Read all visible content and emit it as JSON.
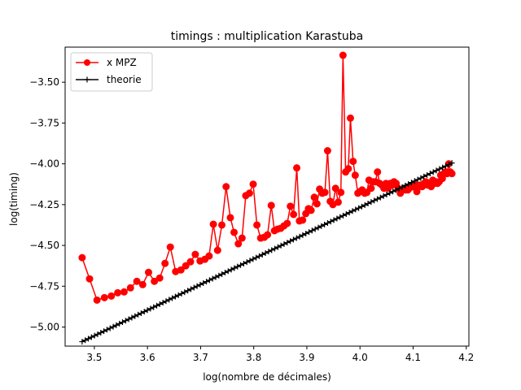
{
  "chart_data": {
    "type": "line",
    "title": "timings : multiplication Karastuba",
    "xlabel": "log(nombre de décimales)",
    "ylabel": "log(timing)",
    "xlim": [
      3.445,
      4.205
    ],
    "ylim": [
      -5.117,
      -3.285
    ],
    "xticks": [
      3.5,
      3.6,
      3.7,
      3.8,
      3.9,
      4.0,
      4.1,
      4.2
    ],
    "xtick_labels": [
      "3.5",
      "3.6",
      "3.7",
      "3.8",
      "3.9",
      "4.0",
      "4.1",
      "4.2"
    ],
    "yticks": [
      -5.0,
      -4.75,
      -4.5,
      -4.25,
      -4.0,
      -3.75,
      -3.5
    ],
    "ytick_labels": [
      "−5.00",
      "−4.75",
      "−4.50",
      "−4.25",
      "−4.00",
      "−3.75",
      "−3.50"
    ],
    "grid": false,
    "legend_position": "top-left",
    "series": [
      {
        "name": "x MPZ",
        "color": "#ff0000",
        "marker": "circle",
        "x": [
          3.477,
          3.491,
          3.505,
          3.519,
          3.532,
          3.544,
          3.556,
          3.568,
          3.58,
          3.591,
          3.602,
          3.613,
          3.623,
          3.633,
          3.643,
          3.653,
          3.663,
          3.672,
          3.681,
          3.69,
          3.699,
          3.708,
          3.716,
          3.724,
          3.732,
          3.74,
          3.748,
          3.756,
          3.763,
          3.771,
          3.778,
          3.785,
          3.792,
          3.799,
          3.806,
          3.813,
          3.82,
          3.826,
          3.833,
          3.839,
          3.845,
          3.851,
          3.857,
          3.863,
          3.869,
          3.875,
          3.881,
          3.886,
          3.892,
          3.898,
          3.903,
          3.908,
          3.914,
          3.919,
          3.924,
          3.929,
          3.934,
          3.939,
          3.944,
          3.949,
          3.954,
          3.959,
          3.964,
          3.968,
          3.973,
          3.978,
          3.982,
          3.987,
          3.991,
          3.996,
          4.0,
          4.004,
          4.009,
          4.013,
          4.017,
          4.021,
          4.025,
          4.029,
          4.033,
          4.037,
          4.041,
          4.045,
          4.049,
          4.053,
          4.057,
          4.061,
          4.064,
          4.068,
          4.072,
          4.076,
          4.079,
          4.083,
          4.086,
          4.09,
          4.093,
          4.097,
          4.1,
          4.104,
          4.107,
          4.111,
          4.114,
          4.117,
          4.121,
          4.124,
          4.127,
          4.13,
          4.134,
          4.137,
          4.14,
          4.143,
          4.146,
          4.149,
          4.152,
          4.155,
          4.158,
          4.161,
          4.164,
          4.167,
          4.17,
          4.173
        ],
        "y": [
          -4.575,
          -4.705,
          -4.835,
          -4.82,
          -4.81,
          -4.79,
          -4.785,
          -4.76,
          -4.72,
          -4.74,
          -4.665,
          -4.72,
          -4.7,
          -4.61,
          -4.51,
          -4.66,
          -4.65,
          -4.625,
          -4.6,
          -4.555,
          -4.595,
          -4.585,
          -4.565,
          -4.37,
          -4.53,
          -4.375,
          -4.14,
          -4.33,
          -4.42,
          -4.49,
          -4.455,
          -4.195,
          -4.18,
          -4.125,
          -4.375,
          -4.455,
          -4.45,
          -4.435,
          -4.255,
          -4.41,
          -4.4,
          -4.395,
          -4.38,
          -4.365,
          -4.26,
          -4.31,
          -4.025,
          -4.35,
          -4.345,
          -4.305,
          -4.275,
          -4.285,
          -4.205,
          -4.245,
          -4.155,
          -4.18,
          -4.175,
          -3.92,
          -4.23,
          -4.25,
          -4.15,
          -4.235,
          -4.175,
          -3.335,
          -4.05,
          -4.03,
          -3.72,
          -3.985,
          -4.07,
          -4.18,
          -4.17,
          -4.16,
          -4.18,
          -4.175,
          -4.1,
          -4.15,
          -4.11,
          -4.11,
          -4.05,
          -4.12,
          -4.13,
          -4.15,
          -4.12,
          -4.15,
          -4.12,
          -4.13,
          -4.11,
          -4.12,
          -4.15,
          -4.18,
          -4.16,
          -4.15,
          -4.16,
          -4.16,
          -4.15,
          -4.14,
          -4.14,
          -4.13,
          -4.17,
          -4.14,
          -4.13,
          -4.14,
          -4.12,
          -4.11,
          -4.13,
          -4.12,
          -4.14,
          -4.1,
          -4.12,
          -4.11,
          -4.12,
          -4.11,
          -4.07,
          -4.09,
          -4.06,
          -4.05,
          -4.06,
          -4.0,
          -4.05,
          -4.06
        ]
      },
      {
        "name": "theorie",
        "color": "#000000",
        "marker": "plus",
        "x_start": 3.477,
        "x_end": 4.173,
        "y_start": -5.09,
        "y_end": -3.995,
        "n_points": 120
      }
    ]
  }
}
